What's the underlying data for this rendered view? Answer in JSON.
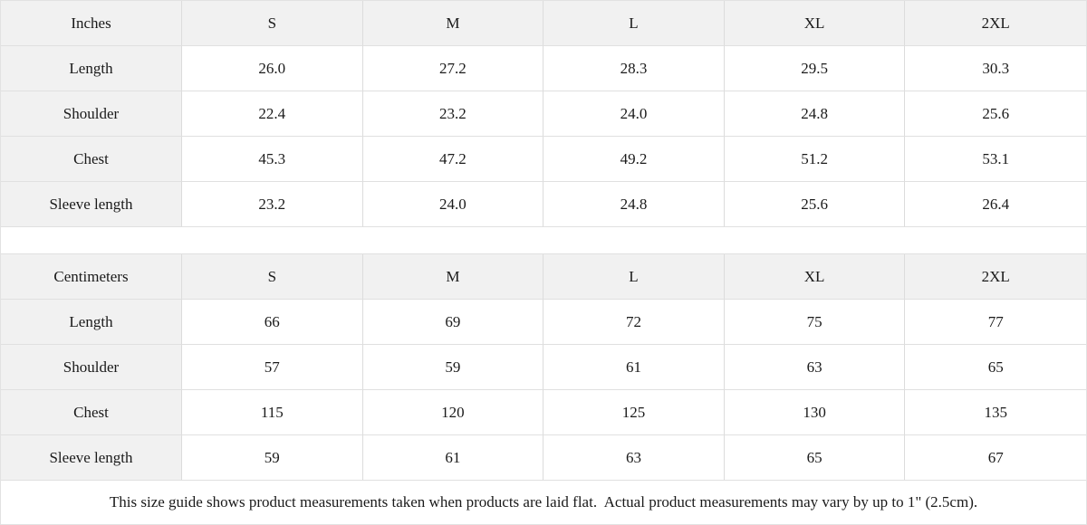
{
  "tables": [
    {
      "unit": "Inches",
      "header": [
        "Inches",
        "S",
        "M",
        "L",
        "XL",
        "2XL"
      ],
      "rows": [
        {
          "label": "Length",
          "values": [
            "26.0",
            "27.2",
            "28.3",
            "29.5",
            "30.3"
          ]
        },
        {
          "label": "Shoulder",
          "values": [
            "22.4",
            "23.2",
            "24.0",
            "24.8",
            "25.6"
          ]
        },
        {
          "label": "Chest",
          "values": [
            "45.3",
            "47.2",
            "49.2",
            "51.2",
            "53.1"
          ]
        },
        {
          "label": "Sleeve length",
          "values": [
            "23.2",
            "24.0",
            "24.8",
            "25.6",
            "26.4"
          ]
        }
      ]
    },
    {
      "unit": "Centimeters",
      "header": [
        "Centimeters",
        "S",
        "M",
        "L",
        "XL",
        "2XL"
      ],
      "rows": [
        {
          "label": "Length",
          "values": [
            "66",
            "69",
            "72",
            "75",
            "77"
          ]
        },
        {
          "label": "Shoulder",
          "values": [
            "57",
            "59",
            "61",
            "63",
            "65"
          ]
        },
        {
          "label": "Chest",
          "values": [
            "115",
            "120",
            "125",
            "130",
            "135"
          ]
        },
        {
          "label": "Sleeve length",
          "values": [
            "59",
            "61",
            "63",
            "65",
            "67"
          ]
        }
      ]
    }
  ],
  "footer": {
    "note": "This size guide shows product measurements taken when products are laid flat.  Actual product measurements may vary by up to 1\" (2.5cm)."
  },
  "colors": {
    "header_bg": "#f1f1f1",
    "cell_bg": "#ffffff",
    "border_vertical": "#dcdcdc",
    "border_horizontal": "#e0e0e0",
    "text": "#1a1a1a"
  }
}
